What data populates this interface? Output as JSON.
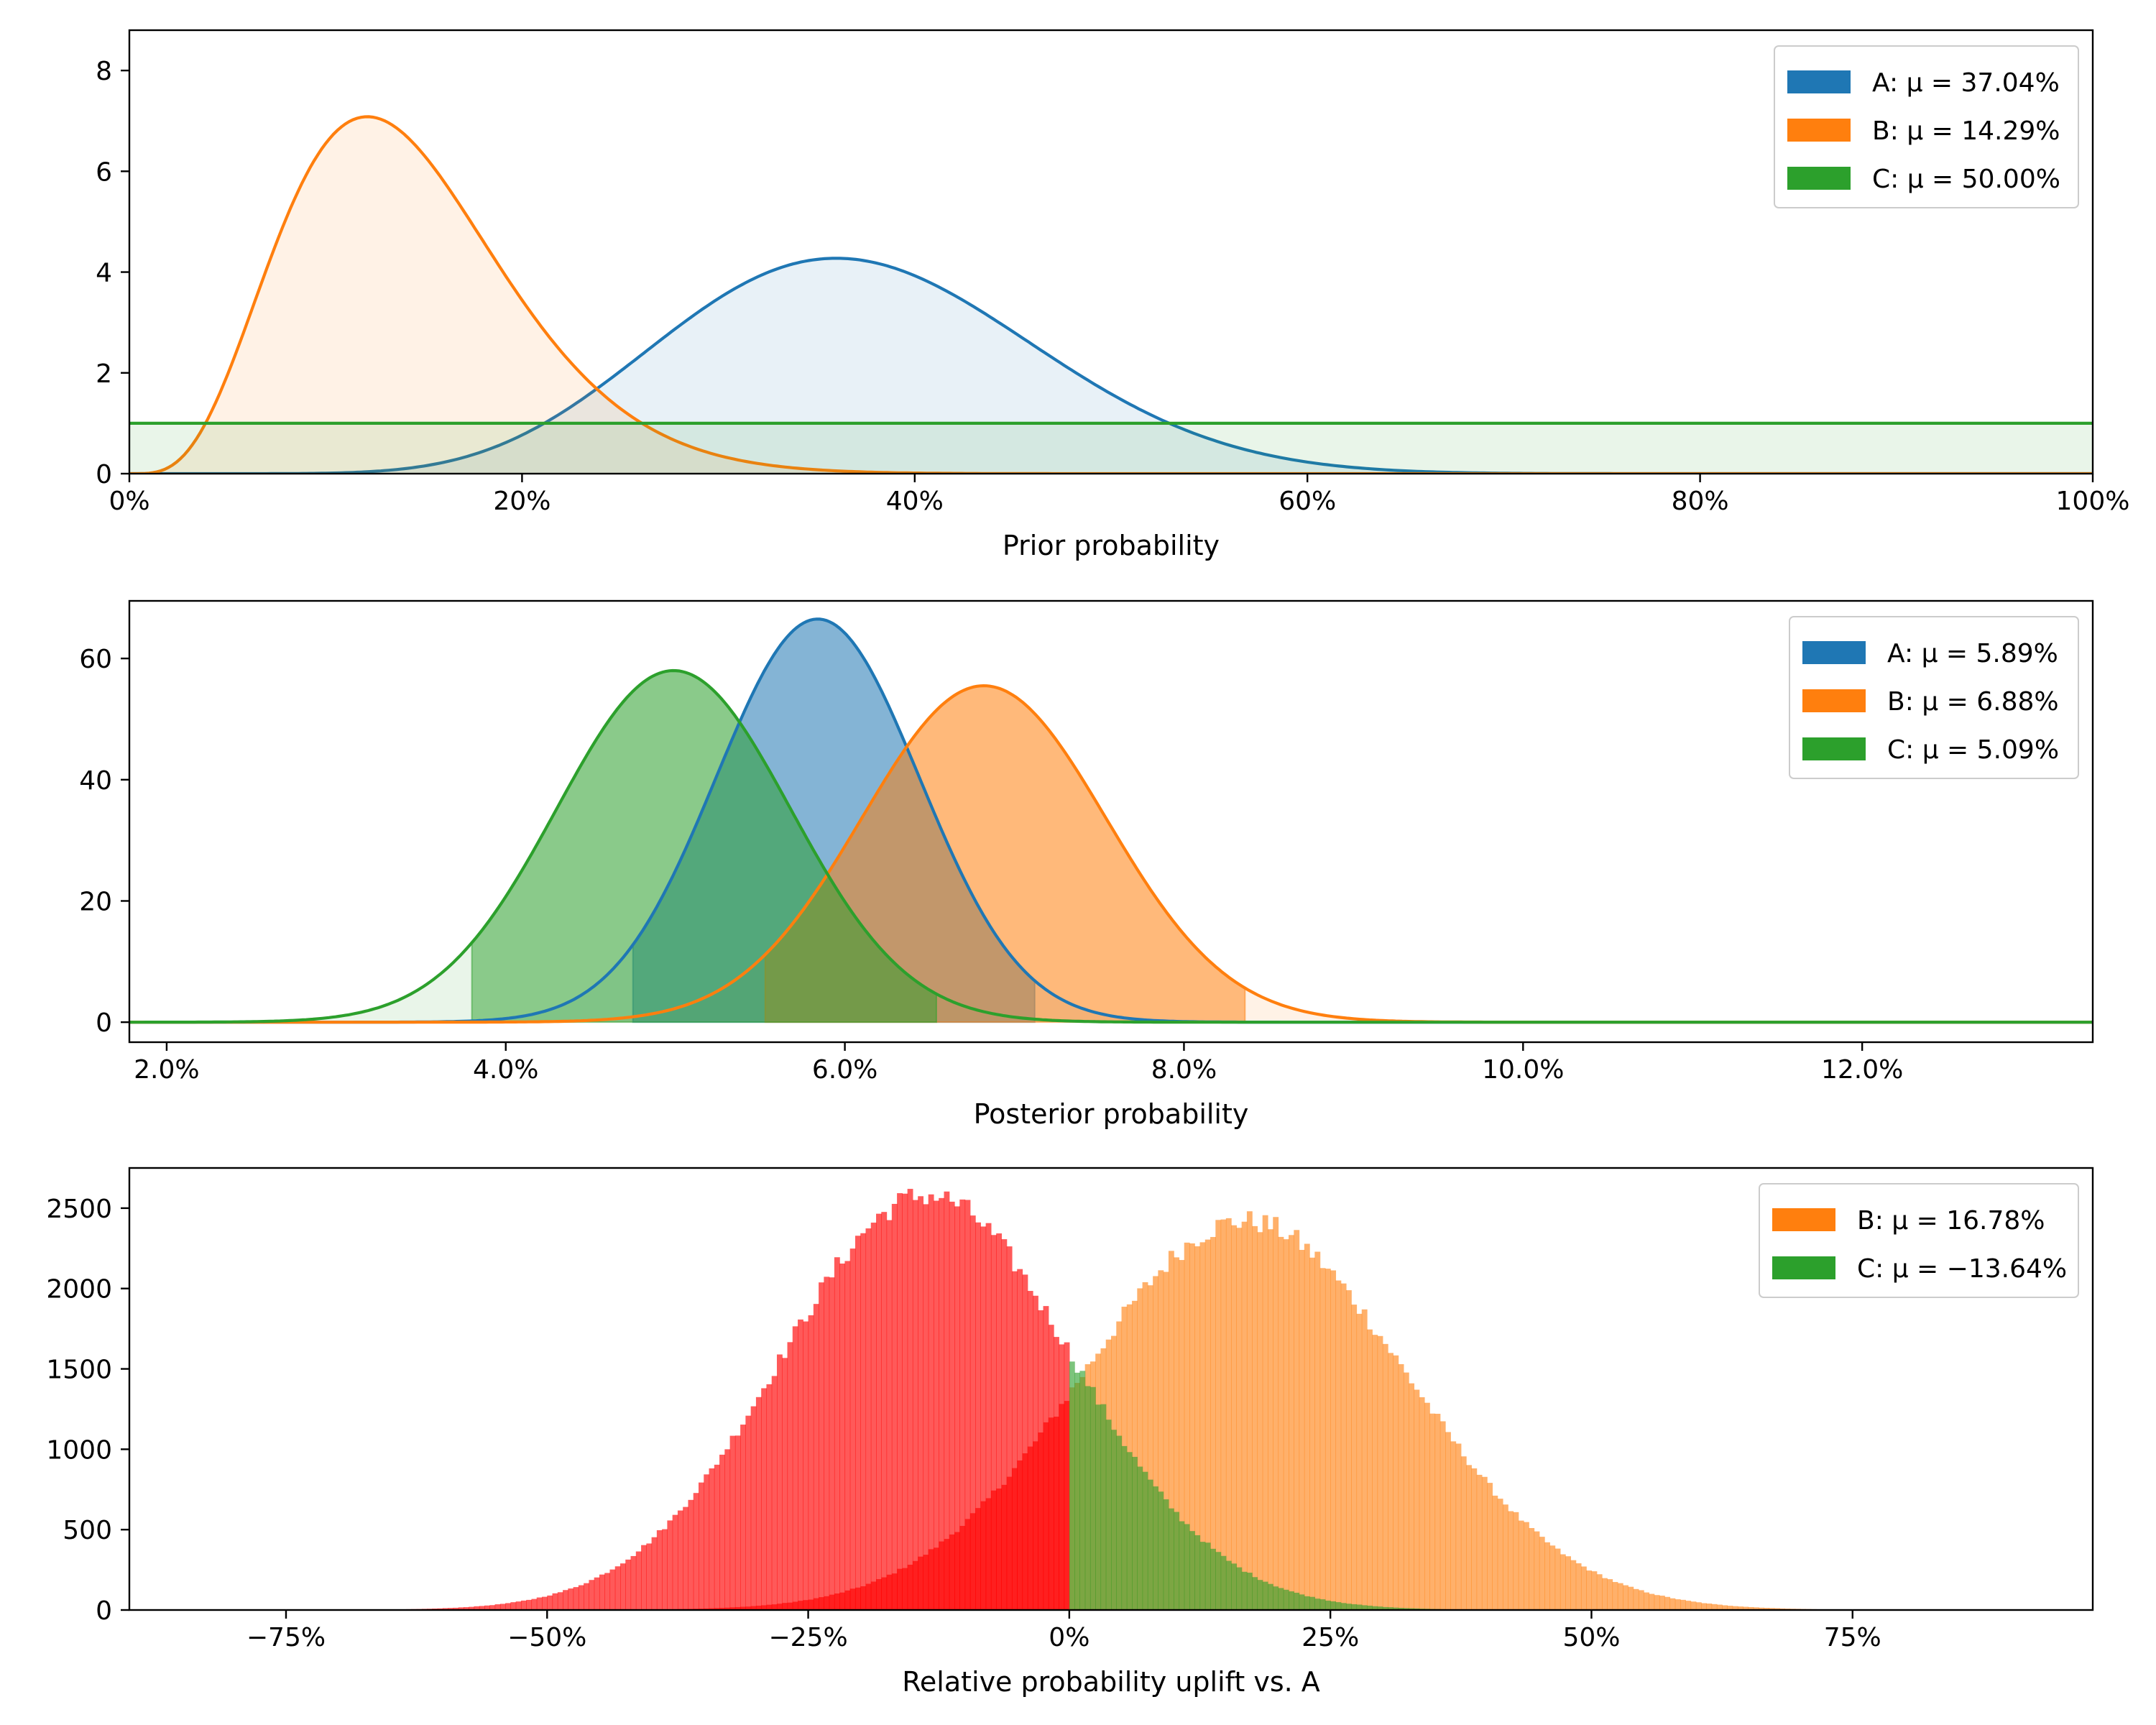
{
  "chart_data": [
    {
      "type": "area",
      "title": "",
      "xlabel": "Prior probability",
      "ylabel": "",
      "xlim": [
        0,
        1
      ],
      "ylim": [
        0,
        8.8
      ],
      "x_ticks": [
        0,
        0.2,
        0.4,
        0.6,
        0.8,
        1.0
      ],
      "x_tick_labels": [
        "0%",
        "20%",
        "40%",
        "60%",
        "80%",
        "100%"
      ],
      "y_ticks": [
        0,
        2,
        4,
        6,
        8
      ],
      "y_tick_labels": [
        "0",
        "2",
        "4",
        "6",
        "8"
      ],
      "legend_position": "top-right",
      "series": [
        {
          "name": "A",
          "legend": "A: μ = 37.04%",
          "distribution": "beta",
          "alpha": 10,
          "beta": 17,
          "mean": 0.3704,
          "color": "#1f77b4"
        },
        {
          "name": "B",
          "legend": "B: μ = 14.29%",
          "distribution": "beta",
          "alpha": 5,
          "beta": 30,
          "mean": 0.1429,
          "color": "#ff7f0e"
        },
        {
          "name": "C",
          "legend": "C: μ = 50.00%",
          "distribution": "beta",
          "alpha": 1,
          "beta": 1,
          "mean": 0.5,
          "color": "#2ca02c"
        }
      ]
    },
    {
      "type": "area",
      "title": "",
      "xlabel": "Posterior probability",
      "ylabel": "",
      "xlim": [
        0.0178,
        0.1336
      ],
      "ylim": [
        -3.3,
        69.5
      ],
      "x_ticks": [
        0.02,
        0.04,
        0.06,
        0.08,
        0.1,
        0.12
      ],
      "x_tick_labels": [
        "2.0%",
        "4.0%",
        "6.0%",
        "8.0%",
        "10.0%",
        "12.0%"
      ],
      "y_ticks": [
        0,
        20,
        40,
        60
      ],
      "y_tick_labels": [
        "0",
        "20",
        "40",
        "60"
      ],
      "legend_position": "top-right",
      "series": [
        {
          "name": "A",
          "legend": "A: μ = 5.89%",
          "distribution": "normal",
          "mean": 0.0589,
          "sd": 0.006,
          "peak": 66.5,
          "mode": 0.0584,
          "hdi": [
            0.0475,
            0.0712
          ],
          "color": "#1f77b4"
        },
        {
          "name": "B",
          "legend": "B: μ = 6.88%",
          "distribution": "normal",
          "mean": 0.0688,
          "sd": 0.0072,
          "peak": 55.5,
          "mode": 0.0682,
          "hdi": [
            0.0553,
            0.0836
          ],
          "color": "#ff7f0e"
        },
        {
          "name": "C",
          "legend": "C: μ = 5.09%",
          "distribution": "normal",
          "mean": 0.0509,
          "sd": 0.0069,
          "peak": 58,
          "mode": 0.0499,
          "hdi": [
            0.038,
            0.0654
          ],
          "color": "#2ca02c"
        }
      ]
    },
    {
      "type": "bar",
      "title": "",
      "xlabel": "Relative probability uplift vs. A",
      "ylabel": "",
      "xlim": [
        -0.9,
        0.98
      ],
      "ylim": [
        0,
        2750
      ],
      "x_ticks": [
        -0.75,
        -0.5,
        -0.25,
        0,
        0.25,
        0.5,
        0.75
      ],
      "x_tick_labels": [
        "−75%",
        "−50%",
        "−25%",
        "0%",
        "25%",
        "50%",
        "75%"
      ],
      "y_ticks": [
        0,
        500,
        1000,
        1500,
        2000,
        2500
      ],
      "y_tick_labels": [
        "0",
        "500",
        "1000",
        "1500",
        "2000",
        "2500"
      ],
      "legend_position": "top-right",
      "bin_width": 0.005,
      "negative_color": "#ff0000",
      "series": [
        {
          "name": "B",
          "legend": "B: μ = 16.78%",
          "mean": 0.1678,
          "sd": 0.155,
          "peak": 2420,
          "bin_range": [
            -0.68,
            0.9
          ],
          "color": "#ff7f0e"
        },
        {
          "name": "C",
          "legend": "C: μ = −13.64%",
          "mean": -0.1364,
          "sd": 0.14,
          "peak": 2580,
          "bin_range": [
            -0.68,
            0.4
          ],
          "color": "#2ca02c"
        }
      ]
    }
  ]
}
